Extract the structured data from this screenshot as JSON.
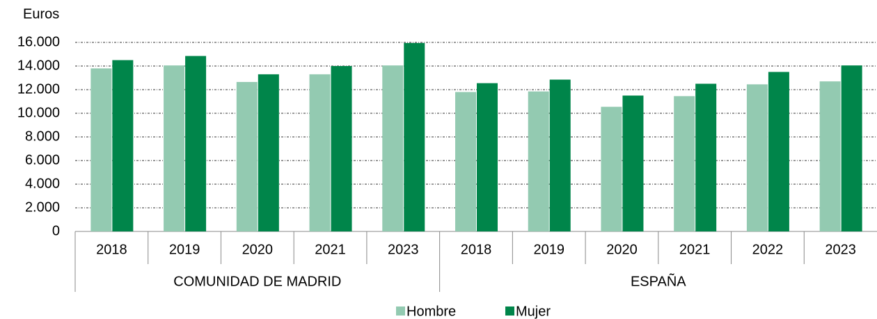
{
  "chart_data": {
    "type": "bar",
    "ylabel": "Euros",
    "groups": [
      {
        "name": "COMUNIDAD DE MADRID",
        "categories": [
          "2018",
          "2019",
          "2020",
          "2021",
          "2023"
        ]
      },
      {
        "name": "ESPAÑA",
        "categories": [
          "2018",
          "2019",
          "2020",
          "2021",
          "2022",
          "2023"
        ]
      }
    ],
    "series": [
      {
        "name": "Hombre",
        "color": "#93cab1",
        "values": [
          13800,
          14050,
          12650,
          13300,
          14050,
          11800,
          11850,
          10550,
          11450,
          12450,
          12700
        ]
      },
      {
        "name": "Mujer",
        "color": "#00854a",
        "values": [
          14500,
          14850,
          13300,
          14000,
          15950,
          12550,
          12850,
          11500,
          12500,
          13500,
          14050
        ]
      }
    ],
    "ylim": [
      0,
      16000
    ],
    "yticks": [
      0,
      {
        "value": 2000,
        "label": "2.000"
      },
      {
        "value": 4000,
        "label": "4.000"
      },
      {
        "value": 6000,
        "label": "6.000"
      },
      {
        "value": 8000,
        "label": "8.000"
      },
      {
        "value": 10000,
        "label": "10.000"
      },
      {
        "value": 12000,
        "label": "12.000"
      },
      {
        "value": 14000,
        "label": "14.000"
      },
      {
        "value": 16000,
        "label": "16.000"
      }
    ],
    "grid": true,
    "legend": "bottom"
  }
}
